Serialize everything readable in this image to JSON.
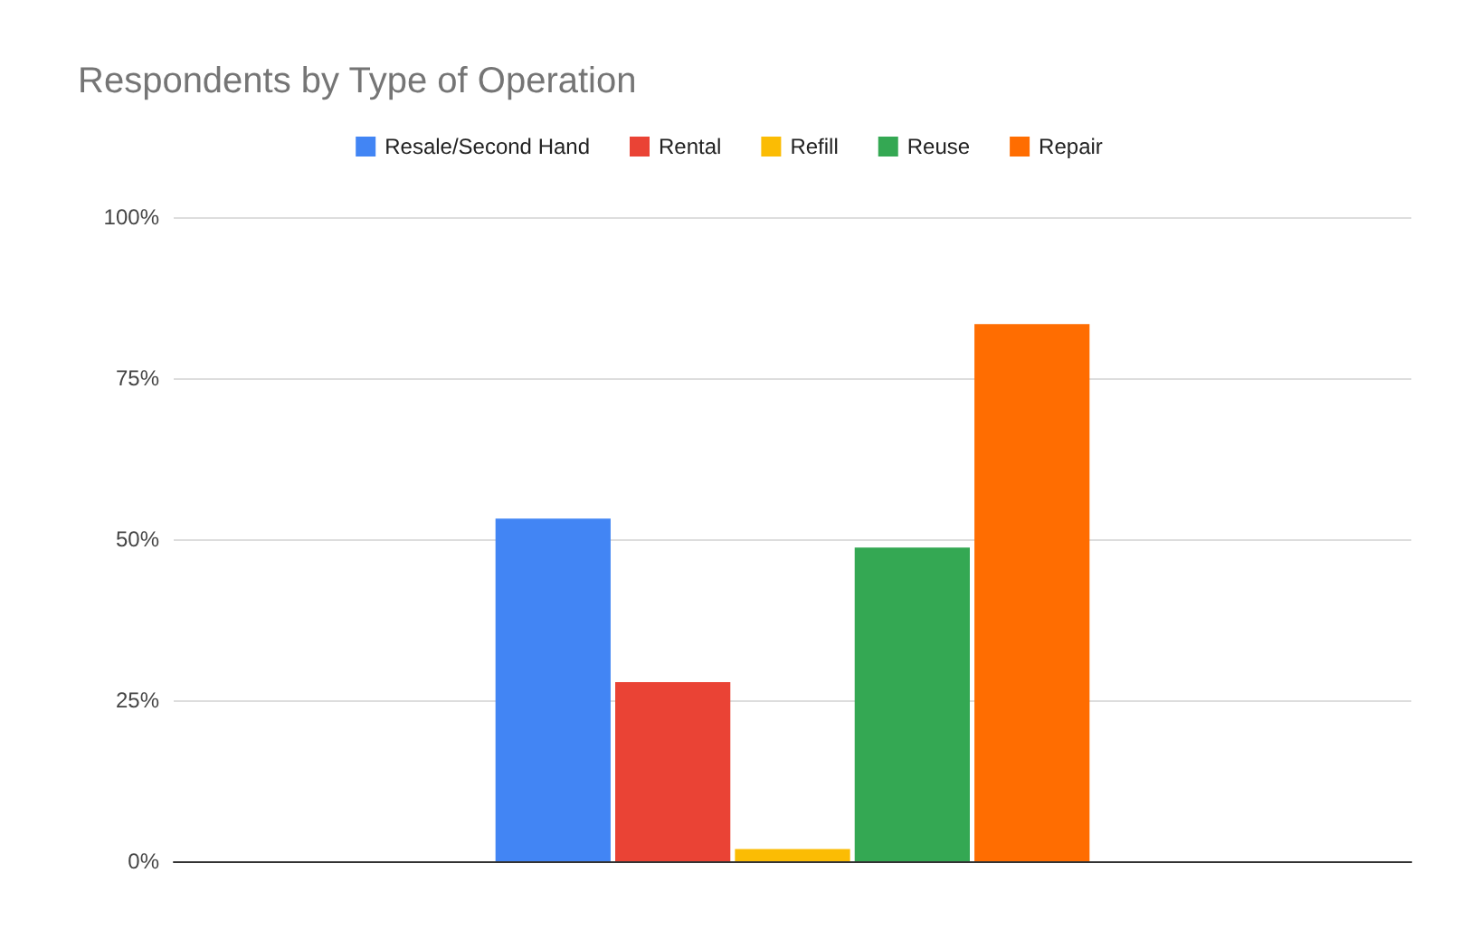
{
  "chart_data": {
    "type": "bar",
    "title": "Respondents by Type of Operation",
    "categories": [
      null
    ],
    "series": [
      {
        "name": "Resale/Second Hand",
        "color": "#4285f4",
        "values": [
          53.2
        ]
      },
      {
        "name": "Rental",
        "color": "#ea4335",
        "values": [
          27.8
        ]
      },
      {
        "name": "Refill",
        "color": "#fbbc04",
        "values": [
          1.9
        ]
      },
      {
        "name": "Reuse",
        "color": "#34a853",
        "values": [
          48.7
        ]
      },
      {
        "name": "Repair",
        "color": "#ff6d01",
        "values": [
          83.4
        ]
      }
    ],
    "ylim": [
      0,
      100
    ],
    "yticks": [
      {
        "value": 0,
        "label": "0%"
      },
      {
        "value": 25,
        "label": "25%"
      },
      {
        "value": 50,
        "label": "50%"
      },
      {
        "value": 75,
        "label": "75%"
      },
      {
        "value": 100,
        "label": "100%"
      }
    ],
    "grid": "y",
    "legend": "top"
  }
}
